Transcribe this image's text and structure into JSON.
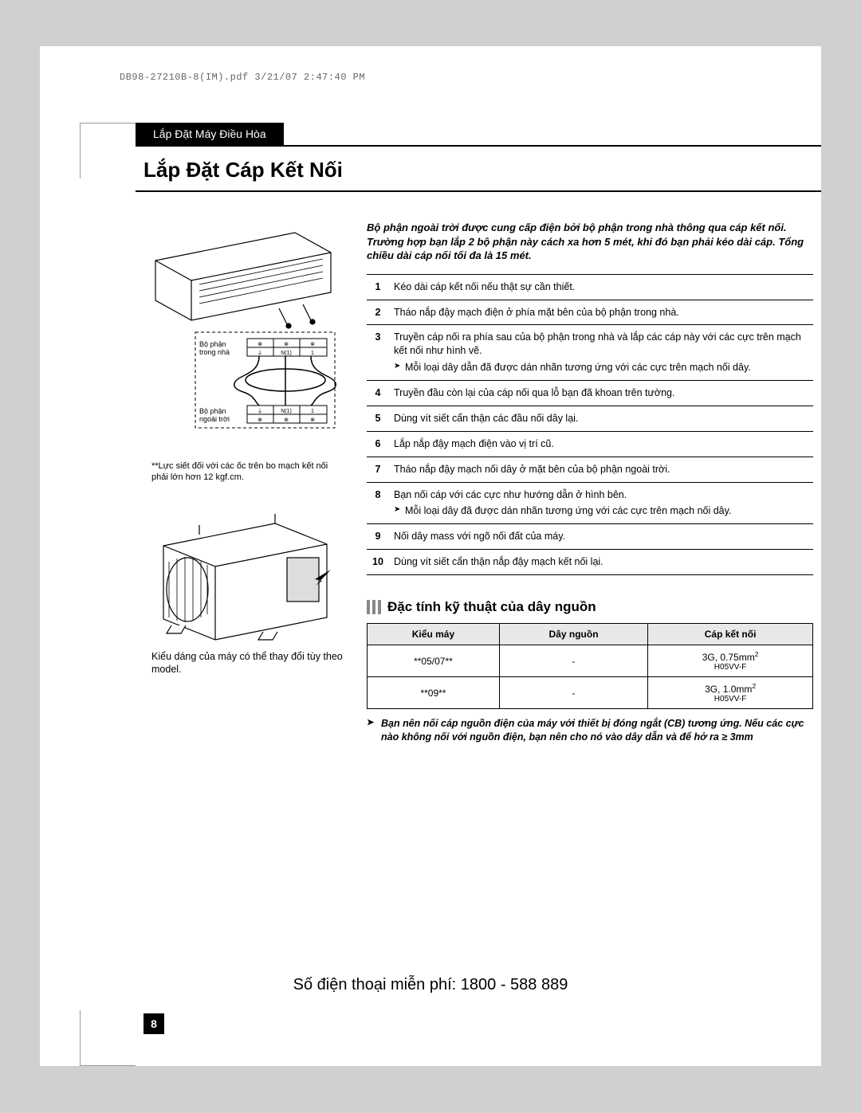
{
  "meta_line": "DB98-27210B-8(IM).pdf   3/21/07   2:47:40 PM",
  "section_tab": "Lắp Đặt Máy Điều Hòa",
  "title": "Lắp Đặt Cáp Kết Nối",
  "intro": "Bộ phận ngoài trời được cung cấp điện bởi bộ phận trong nhà thông qua cáp kết nối. Trường hợp bạn lắp 2 bộ phận này cách xa hơn 5 mét, khi đó bạn phải kéo dài cáp. Tổng chiều dài cáp nối tối đa là 15 mét.",
  "diagram": {
    "indoor_label": "Bộ phận trong nhà",
    "outdoor_label": "Bộ phận ngoài trời",
    "terminal_labels": [
      "N(1)",
      "1"
    ],
    "torque_note": "**Lực siết đối với các ốc trên bo mạch kết nối phải lớn hơn 12 kgf.cm.",
    "model_note": "Kiểu dáng của máy có thể thay đổi tùy theo model."
  },
  "steps": [
    {
      "n": "1",
      "text": "Kéo dài cáp kết nối nếu thật sự cần thiết."
    },
    {
      "n": "2",
      "text": "Tháo nắp đậy mạch điện ở phía mặt bên của bộ phận trong nhà."
    },
    {
      "n": "3",
      "text": "Truyền cáp nối ra phía sau của bộ phận trong nhà và lắp các cáp này với các cực trên mạch kết nối như hình vẽ.",
      "sub": "Mỗi loại dây dẫn đã được dán nhãn tương ứng với các cực trên mạch nối dây."
    },
    {
      "n": "4",
      "text": "Truyền đầu còn lại của cáp nối qua lỗ bạn đã khoan trên tường."
    },
    {
      "n": "5",
      "text": "Dùng vít siết cẩn thận các đầu nối dây lại."
    },
    {
      "n": "6",
      "text": "Lắp nắp đậy mạch điện vào vị trí cũ."
    },
    {
      "n": "7",
      "text": "Tháo nắp đậy mạch nối dây ở mặt bên của bộ phận ngoài trời."
    },
    {
      "n": "8",
      "text": "Bạn nối cáp với các cực như hướng dẫn ở hình bên.",
      "sub": "Mỗi loại dây đã được dán nhãn tương ứng với các cực trên mạch nối dây."
    },
    {
      "n": "9",
      "text": "Nối dây mass với ngõ nối đất của máy."
    },
    {
      "n": "10",
      "text": "Dùng vít siết cẩn thận nắp đậy mạch kết nối lại."
    }
  ],
  "sub_heading": "Đặc tính kỹ thuật của dây nguồn",
  "table": {
    "headers": [
      "Kiểu máy",
      "Dây nguồn",
      "Cáp kết nối"
    ],
    "rows": [
      {
        "c1": "**05/07**",
        "c2": "-",
        "c3a": "3G, 0.75mm²",
        "c3b": "H05VV-F"
      },
      {
        "c1": "**09**",
        "c2": "-",
        "c3a": "3G, 1.0mm²",
        "c3b": "H05VV-F"
      }
    ]
  },
  "footer_warn": "Bạn nên nối cáp nguồn điện của máy với thiết bị đóng ngắt (CB) tương ứng. Nếu các cực nào không nối với nguồn điện, bạn nên cho nó vào dây dẫn và để hở ra ≥ 3mm",
  "hotline": "Số điện thoại miễn phí: 1800 - 588 889",
  "page_number": "8",
  "colors": {
    "page_bg": "#d0d0d0",
    "paper": "#ffffff",
    "black": "#000000",
    "header_grey": "#888888",
    "table_header_bg": "#e8e8e8"
  }
}
